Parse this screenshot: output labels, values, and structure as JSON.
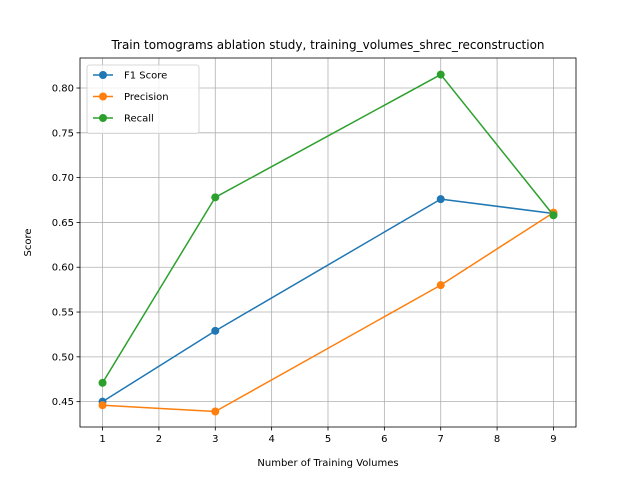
{
  "chart_data": {
    "type": "line",
    "title": "Train tomograms ablation study, training_volumes_shrec_reconstruction",
    "xlabel": "Number of Training Volumes",
    "ylabel": "Score",
    "x": [
      1,
      3,
      7,
      9
    ],
    "xlim": [
      0.6,
      9.4
    ],
    "ylim": [
      0.4217,
      0.8335
    ],
    "xticks": [
      1,
      2,
      3,
      4,
      5,
      6,
      7,
      8,
      9
    ],
    "yticks": [
      0.45,
      0.5,
      0.55,
      0.6,
      0.65,
      0.7,
      0.75,
      0.8
    ],
    "yticks_format": 2,
    "grid": true,
    "legend_position": "upper-left",
    "series": [
      {
        "name": "F1 Score",
        "color": "#1f77b4",
        "values": [
          0.45,
          0.529,
          0.676,
          0.66
        ]
      },
      {
        "name": "Precision",
        "color": "#ff7f0e",
        "values": [
          0.446,
          0.439,
          0.58,
          0.661
        ]
      },
      {
        "name": "Recall",
        "color": "#2ca02c",
        "values": [
          0.471,
          0.678,
          0.815,
          0.658
        ]
      }
    ]
  }
}
